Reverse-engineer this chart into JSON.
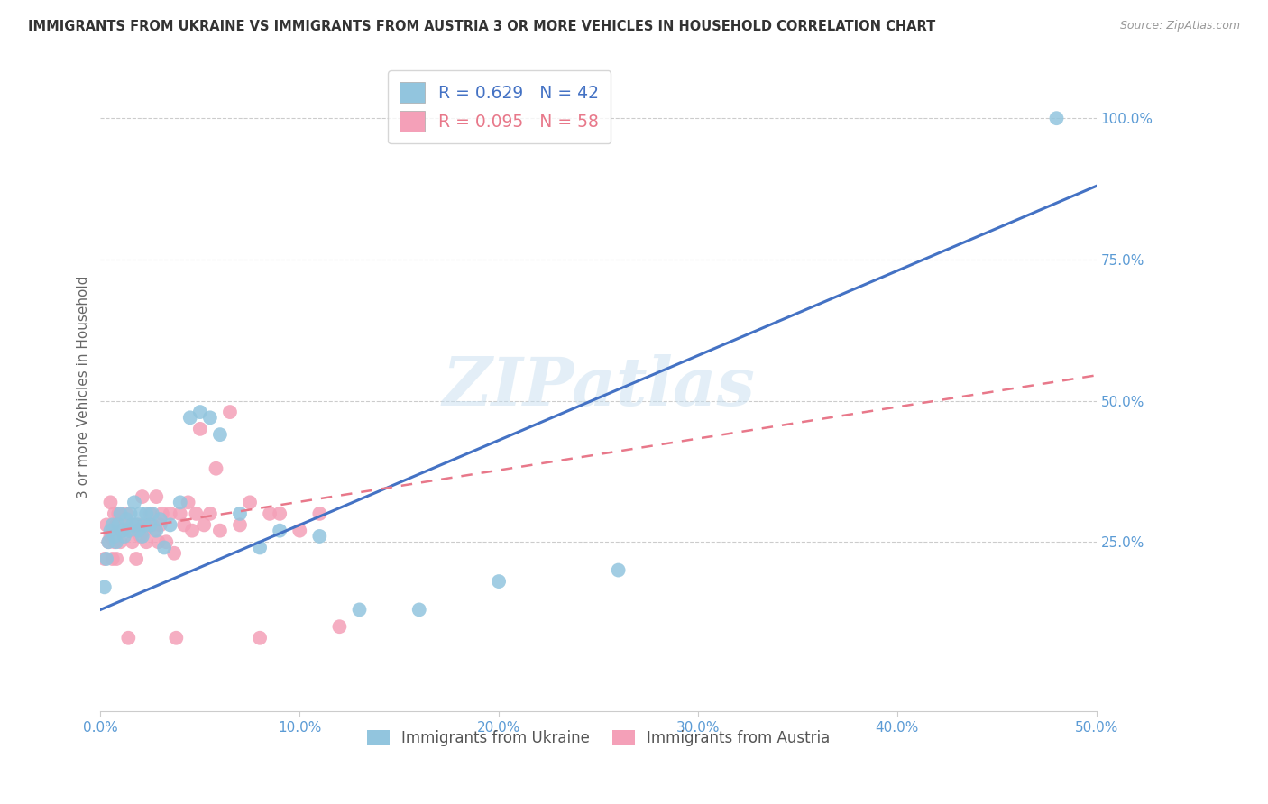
{
  "title": "IMMIGRANTS FROM UKRAINE VS IMMIGRANTS FROM AUSTRIA 3 OR MORE VEHICLES IN HOUSEHOLD CORRELATION CHART",
  "source": "Source: ZipAtlas.com",
  "ylabel": "3 or more Vehicles in Household",
  "xlim": [
    0.0,
    0.5
  ],
  "ylim": [
    -0.05,
    1.1
  ],
  "xtick_labels": [
    "0.0%",
    "10.0%",
    "20.0%",
    "30.0%",
    "40.0%",
    "50.0%"
  ],
  "xtick_vals": [
    0.0,
    0.1,
    0.2,
    0.3,
    0.4,
    0.5
  ],
  "ytick_labels": [
    "25.0%",
    "50.0%",
    "75.0%",
    "100.0%"
  ],
  "ytick_vals": [
    0.25,
    0.5,
    0.75,
    1.0
  ],
  "ukraine_color": "#92C5DE",
  "austria_color": "#F4A0B8",
  "ukraine_line_color": "#4472C4",
  "austria_line_color": "#E8788A",
  "ukraine_R": 0.629,
  "ukraine_N": 42,
  "austria_R": 0.095,
  "austria_N": 58,
  "legend_label_ukraine": "Immigrants from Ukraine",
  "legend_label_austria": "Immigrants from Austria",
  "watermark": "ZIPatlas",
  "ukraine_line_x0": 0.0,
  "ukraine_line_y0": 0.13,
  "ukraine_line_x1": 0.5,
  "ukraine_line_y1": 0.88,
  "austria_line_x0": 0.0,
  "austria_line_y0": 0.265,
  "austria_line_x1": 0.5,
  "austria_line_y1": 0.545,
  "ukraine_x": [
    0.002,
    0.003,
    0.004,
    0.005,
    0.006,
    0.007,
    0.008,
    0.009,
    0.01,
    0.011,
    0.012,
    0.013,
    0.014,
    0.015,
    0.016,
    0.017,
    0.018,
    0.019,
    0.02,
    0.021,
    0.022,
    0.023,
    0.025,
    0.026,
    0.028,
    0.03,
    0.032,
    0.035,
    0.04,
    0.045,
    0.05,
    0.055,
    0.06,
    0.07,
    0.08,
    0.09,
    0.11,
    0.13,
    0.16,
    0.2,
    0.26,
    0.48
  ],
  "ukraine_y": [
    0.17,
    0.22,
    0.25,
    0.27,
    0.28,
    0.26,
    0.25,
    0.28,
    0.3,
    0.27,
    0.26,
    0.29,
    0.27,
    0.3,
    0.28,
    0.32,
    0.28,
    0.27,
    0.3,
    0.26,
    0.28,
    0.3,
    0.28,
    0.3,
    0.27,
    0.29,
    0.24,
    0.28,
    0.32,
    0.47,
    0.48,
    0.47,
    0.44,
    0.3,
    0.24,
    0.27,
    0.26,
    0.13,
    0.13,
    0.18,
    0.2,
    1.0
  ],
  "austria_x": [
    0.002,
    0.003,
    0.004,
    0.005,
    0.005,
    0.006,
    0.006,
    0.007,
    0.007,
    0.008,
    0.008,
    0.009,
    0.009,
    0.01,
    0.011,
    0.012,
    0.013,
    0.014,
    0.015,
    0.016,
    0.017,
    0.018,
    0.019,
    0.02,
    0.021,
    0.022,
    0.023,
    0.024,
    0.025,
    0.026,
    0.027,
    0.028,
    0.029,
    0.03,
    0.031,
    0.033,
    0.035,
    0.037,
    0.038,
    0.04,
    0.042,
    0.044,
    0.046,
    0.048,
    0.05,
    0.052,
    0.055,
    0.058,
    0.06,
    0.065,
    0.07,
    0.075,
    0.08,
    0.085,
    0.09,
    0.1,
    0.11,
    0.12
  ],
  "austria_y": [
    0.22,
    0.28,
    0.25,
    0.32,
    0.26,
    0.27,
    0.22,
    0.3,
    0.25,
    0.28,
    0.22,
    0.27,
    0.3,
    0.25,
    0.27,
    0.28,
    0.3,
    0.08,
    0.27,
    0.25,
    0.28,
    0.22,
    0.28,
    0.26,
    0.33,
    0.27,
    0.25,
    0.28,
    0.3,
    0.28,
    0.27,
    0.33,
    0.25,
    0.28,
    0.3,
    0.25,
    0.3,
    0.23,
    0.08,
    0.3,
    0.28,
    0.32,
    0.27,
    0.3,
    0.45,
    0.28,
    0.3,
    0.38,
    0.27,
    0.48,
    0.28,
    0.32,
    0.08,
    0.3,
    0.3,
    0.27,
    0.3,
    0.1
  ]
}
